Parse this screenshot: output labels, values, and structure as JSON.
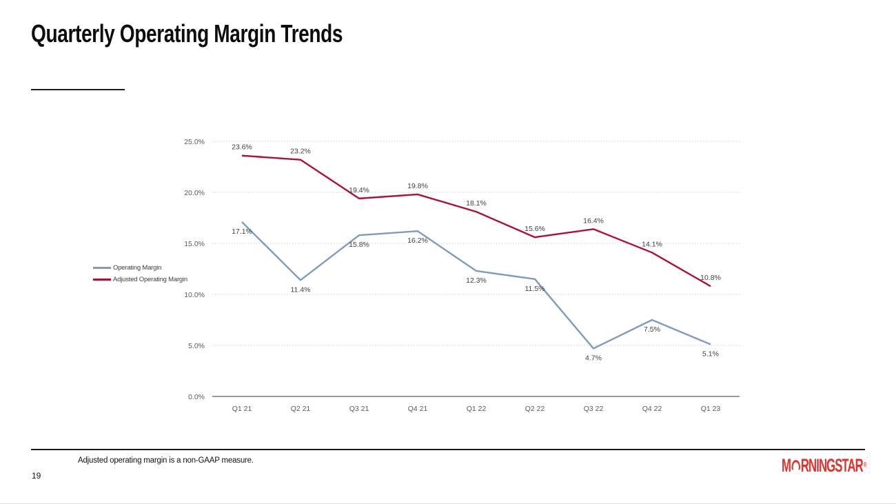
{
  "slide": {
    "title": "Quarterly Operating Margin Trends",
    "footnote": "Adjusted operating margin is a non-GAAP measure.",
    "page_number": "19",
    "logo": {
      "prefix": "M",
      "suffix": "RNINGSTAR",
      "registered": "®",
      "color": "#E5312B"
    }
  },
  "chart_data": {
    "type": "line",
    "title": "",
    "categories": [
      "Q1 21",
      "Q2 21",
      "Q3 21",
      "Q4 21",
      "Q1 22",
      "Q2 22",
      "Q3 22",
      "Q4 22",
      "Q1 23"
    ],
    "series": [
      {
        "name": "Operating Margin",
        "color": "#7D9BBE",
        "values": [
          17.1,
          11.4,
          15.8,
          16.2,
          12.3,
          11.5,
          4.7,
          7.5,
          5.1
        ],
        "labels": [
          "17.1%",
          "11.4%",
          "15.8%",
          "16.2%",
          "12.3%",
          "11.5%",
          "4.7%",
          "7.5%",
          "5.1%"
        ],
        "label_position": "below"
      },
      {
        "name": "Adjusted Operating Margin",
        "color": "#B00F33",
        "values": [
          23.6,
          23.2,
          19.4,
          19.8,
          18.1,
          15.6,
          16.4,
          14.1,
          10.8
        ],
        "labels": [
          "23.6%",
          "23.2%",
          "19.4%",
          "19.8%",
          "18.1%",
          "15.6%",
          "16.4%",
          "14.1%",
          "10.8%"
        ],
        "label_position": "above"
      }
    ],
    "y_axis": {
      "min": 0,
      "max": 25,
      "step": 5,
      "tick_labels": [
        "0.0%",
        "5.0%",
        "10.0%",
        "15.0%",
        "20.0%",
        "25.0%"
      ]
    },
    "grid": true,
    "legend_position": "left"
  }
}
